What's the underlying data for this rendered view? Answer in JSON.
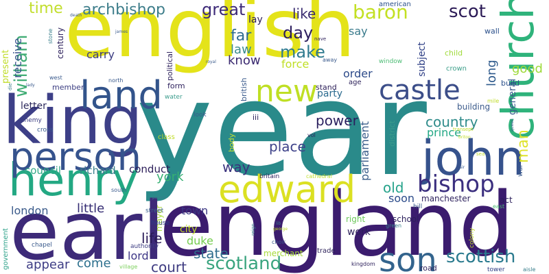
{
  "words": [
    {
      "text": "year",
      "color": "#2a8a8a"
    },
    {
      "text": "english",
      "color": "#e4e31a"
    },
    {
      "text": "england",
      "color": "#3b1c6e"
    },
    {
      "text": "earl",
      "color": "#3d2a78"
    },
    {
      "text": "king",
      "color": "#3d3f87"
    },
    {
      "text": "henry",
      "color": "#23a883"
    },
    {
      "text": "person",
      "color": "#36538d"
    },
    {
      "text": "land",
      "color": "#33548b"
    },
    {
      "text": "edward",
      "color": "#dbe022"
    },
    {
      "text": "john",
      "color": "#36528c"
    },
    {
      "text": "church",
      "color": "#2fb37b"
    },
    {
      "text": "son",
      "color": "#33648d"
    },
    {
      "text": "new",
      "color": "#bfdf24"
    },
    {
      "text": "castle",
      "color": "#3c4e89"
    },
    {
      "text": "bishop",
      "color": "#3b2f7f"
    },
    {
      "text": "scotland",
      "color": "#3aa47f"
    },
    {
      "text": "scottish",
      "color": "#2a7a8e"
    },
    {
      "text": "court",
      "color": "#3d3a80"
    },
    {
      "text": "archbishop",
      "color": "#3d7d8a"
    },
    {
      "text": "great",
      "color": "#3d2a78"
    },
    {
      "text": "scot",
      "color": "#2b1a56"
    },
    {
      "text": "baron",
      "color": "#c3e023"
    },
    {
      "text": "william",
      "color": "#41ad75"
    },
    {
      "text": "time",
      "color": "#c2de2d"
    },
    {
      "text": "make",
      "color": "#2e7a8e"
    },
    {
      "text": "day",
      "color": "#2d1f5e"
    },
    {
      "text": "like",
      "color": "#3a2c70"
    },
    {
      "text": "country",
      "color": "#2e8b8a"
    },
    {
      "text": "prince",
      "color": "#22a785"
    },
    {
      "text": "man",
      "color": "#dfe32c"
    },
    {
      "text": "good",
      "color": "#9ed93a"
    },
    {
      "text": "long",
      "color": "#2e5a8c"
    },
    {
      "text": "place",
      "color": "#3d4189"
    },
    {
      "text": "way",
      "color": "#3a327d"
    },
    {
      "text": "york",
      "color": "#36b073"
    },
    {
      "text": "parliament",
      "color": "#3b5e8b"
    },
    {
      "text": "life",
      "color": "#2a1b57"
    },
    {
      "text": "state",
      "color": "#2f6d8d"
    },
    {
      "text": "duke",
      "color": "#74cc4d"
    },
    {
      "text": "lord",
      "color": "#3d3686"
    },
    {
      "text": "come",
      "color": "#2c6f8d"
    },
    {
      "text": "appear",
      "color": "#3d3c84"
    },
    {
      "text": "little",
      "color": "#342b72"
    },
    {
      "text": "london",
      "color": "#3a5a8a"
    },
    {
      "text": "richard",
      "color": "#3a7f8c"
    },
    {
      "text": "council",
      "color": "#34a887"
    },
    {
      "text": "conduct",
      "color": "#2b1d58"
    },
    {
      "text": "old",
      "color": "#25a28a"
    },
    {
      "text": "soon",
      "color": "#2b4b8a"
    },
    {
      "text": "power",
      "color": "#2a1f5e"
    },
    {
      "text": "party",
      "color": "#2a6a8e"
    },
    {
      "text": "force",
      "color": "#bfdf24"
    },
    {
      "text": "order",
      "color": "#2c4a89"
    },
    {
      "text": "know",
      "color": "#3b2a70"
    },
    {
      "text": "law",
      "color": "#3a8b8b"
    },
    {
      "text": "far",
      "color": "#2f6b8d"
    },
    {
      "text": "say",
      "color": "#3a7b8c"
    },
    {
      "text": "carry",
      "color": "#3b3c81"
    },
    {
      "text": "receive",
      "color": "#35508b"
    },
    {
      "text": "letter",
      "color": "#2d2a5d"
    },
    {
      "text": "town",
      "color": "#3a3682"
    },
    {
      "text": "city",
      "color": "#c2df25"
    },
    {
      "text": "general",
      "color": "#3a5a8c"
    },
    {
      "text": "subject",
      "color": "#2c3d84"
    },
    {
      "text": "lay",
      "color": "#2b1d56"
    },
    {
      "text": "century",
      "color": "#2b1f5b"
    },
    {
      "text": "present",
      "color": "#bfdc27"
    },
    {
      "text": "member",
      "color": "#3a3c80"
    },
    {
      "text": "form",
      "color": "#2b1f5b"
    },
    {
      "text": "stand",
      "color": "#2b1d58"
    },
    {
      "text": "building",
      "color": "#3c5b8b"
    },
    {
      "text": "work",
      "color": "#2b1e5a"
    },
    {
      "text": "act",
      "color": "#2b1e5a"
    },
    {
      "text": "manchester",
      "color": "#2b1f5b"
    },
    {
      "text": "school",
      "color": "#2b1f5b"
    },
    {
      "text": "right",
      "color": "#6cc85a"
    },
    {
      "text": "road",
      "color": "#2b1e5a"
    },
    {
      "text": "merchant",
      "color": "#a7d939"
    },
    {
      "text": "mayor",
      "color": "#aad93a"
    },
    {
      "text": "political",
      "color": "#2b1e5a"
    },
    {
      "text": "british",
      "color": "#3a5a8c"
    },
    {
      "text": "district",
      "color": "#3a9c8c"
    },
    {
      "text": "body",
      "color": "#c2e033"
    },
    {
      "text": "american",
      "color": "#2b4f8a"
    },
    {
      "text": "age",
      "color": "#2a1f58"
    },
    {
      "text": "window",
      "color": "#4cbc74"
    },
    {
      "text": "child",
      "color": "#9fda3a"
    },
    {
      "text": "crown",
      "color": "#3d9f8a"
    },
    {
      "text": "wall",
      "color": "#2a4f8a"
    },
    {
      "text": "build",
      "color": "#2a4f8a"
    },
    {
      "text": "trade",
      "color": "#2a1f58"
    },
    {
      "text": "government",
      "color": "#2ea28a"
    },
    {
      "text": "chapel",
      "color": "#3a5a8c"
    },
    {
      "text": "house",
      "color": "#2d3c84"
    },
    {
      "text": "street",
      "color": "#3b5f8c"
    },
    {
      "text": "authority",
      "color": "#3b3c81"
    },
    {
      "text": "village",
      "color": "#7ed05f"
    },
    {
      "text": "kingdom",
      "color": "#2b1e5a"
    },
    {
      "text": "tower",
      "color": "#2d3c84"
    },
    {
      "text": "aisle",
      "color": "#3a7f8c"
    },
    {
      "text": "east",
      "color": "#4cbc74"
    },
    {
      "text": "hill",
      "color": "#3b5a8c"
    },
    {
      "text": "britain",
      "color": "#2b1e5a"
    },
    {
      "text": "cathedral",
      "color": "#c2e033"
    },
    {
      "text": "class",
      "color": "#bfdc27"
    },
    {
      "text": "water",
      "color": "#3a9c8c"
    },
    {
      "text": "look",
      "color": "#3b5a8c"
    },
    {
      "text": "iii",
      "color": "#2b1e5a"
    },
    {
      "text": "vol",
      "color": "#2b1e5a"
    },
    {
      "text": "enemy",
      "color": "#3a3c80"
    },
    {
      "text": "cross",
      "color": "#3a5a8c"
    },
    {
      "text": "south",
      "color": "#3a5a8c"
    },
    {
      "text": "palace",
      "color": "#3a7f8c"
    },
    {
      "text": "north",
      "color": "#3a5a8c"
    },
    {
      "text": "west",
      "color": "#3a5a8c"
    },
    {
      "text": "royal",
      "color": "#3a5a8c"
    },
    {
      "text": "nave",
      "color": "#2b1e5a"
    },
    {
      "text": "away",
      "color": "#3a5a8c"
    },
    {
      "text": "stone",
      "color": "#3a7f8c"
    },
    {
      "text": "death",
      "color": "#3a5a8c"
    },
    {
      "text": "james",
      "color": "#3a5a8c"
    },
    {
      "text": "lady",
      "color": "#3a5a8c"
    },
    {
      "text": "die",
      "color": "#3a7f8c"
    },
    {
      "text": "mile",
      "color": "#bfdc27"
    },
    {
      "text": "sea",
      "color": "#bfdc27"
    },
    {
      "text": "sir",
      "color": "#3a5a8c"
    },
    {
      "text": "war",
      "color": "#3a5a8c"
    },
    {
      "text": "colony",
      "color": "#bfdc27"
    },
    {
      "text": "choir",
      "color": "#3a5a8c"
    },
    {
      "text": "reign",
      "color": "#3a7f8c"
    },
    {
      "text": "lib",
      "color": "#3a7f8c"
    },
    {
      "text": "george",
      "color": "#bfdc27"
    },
    {
      "text": "green",
      "color": "#3a7f8c"
    },
    {
      "text": "transept",
      "color": "#bfdc27"
    },
    {
      "text": "queen",
      "color": "#3a5a8c"
    },
    {
      "text": "briton",
      "color": "#bfdc27"
    }
  ]
}
